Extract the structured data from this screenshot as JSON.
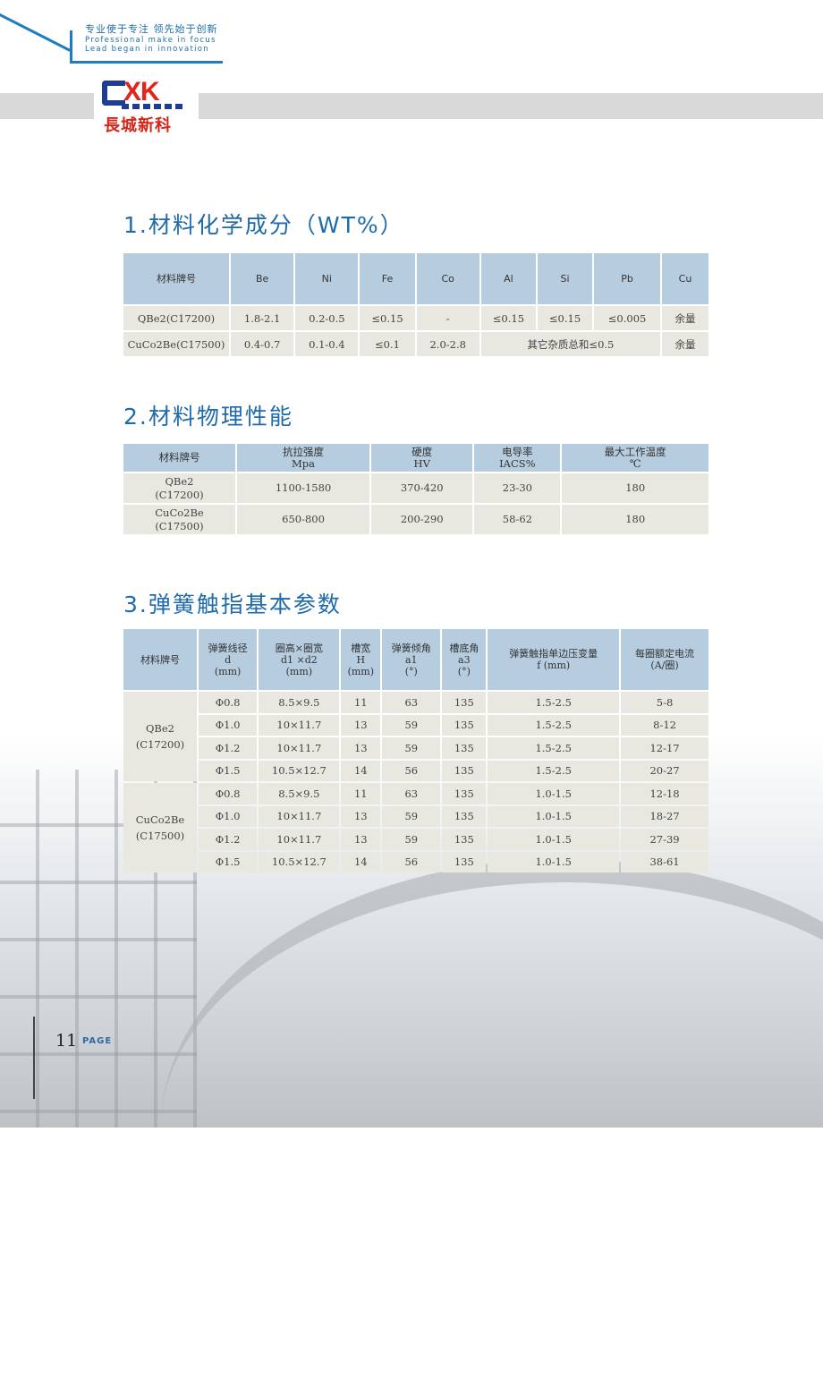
{
  "header": {
    "slogan_cn": "专业使于专注  领先始于创新",
    "slogan_en1": "Professional make in focus",
    "slogan_en2": "Lead began in innovation",
    "logo_text": "CXK",
    "logo_cn": "長城新科",
    "accent": "#1e7cc0"
  },
  "section1": {
    "title": "1.材料化学成分（WT%）",
    "headers": [
      "材料牌号",
      "Be",
      "Ni",
      "Fe",
      "Co",
      "Al",
      "Si",
      "Pb",
      "Cu"
    ],
    "row1": [
      "QBe2(C17200)",
      "1.8-2.1",
      "0.2-0.5",
      "≤0.15",
      "-",
      "≤0.15",
      "≤0.15",
      "≤0.005",
      "余量"
    ],
    "row2": [
      "CuCo2Be(C17500)",
      "0.4-0.7",
      "0.1-0.4",
      "≤0.1",
      "2.0-2.8",
      "其它杂质总和≤0.5",
      "余量"
    ]
  },
  "section2": {
    "title": "2.材料物理性能",
    "headers": [
      [
        "材料牌号",
        ""
      ],
      [
        "抗拉强度",
        "Mpa"
      ],
      [
        "硬度",
        "HV"
      ],
      [
        "电导率",
        "IACS%"
      ],
      [
        "最大工作温度",
        "℃"
      ]
    ],
    "rows": [
      [
        "QBe2",
        "(C17200)",
        "1100-1580",
        "370-420",
        "23-30",
        "180"
      ],
      [
        "CuCo2Be",
        "(C17500)",
        "650-800",
        "200-290",
        "58-62",
        "180"
      ]
    ]
  },
  "section3": {
    "title": "3.弹簧触指基本参数",
    "headers": [
      [
        "材料牌号",
        "",
        ""
      ],
      [
        "弹簧线径",
        "d",
        "(mm)"
      ],
      [
        "圈高×圈宽",
        "d1 ×d2",
        "(mm)"
      ],
      [
        "槽宽",
        "H",
        "(mm)"
      ],
      [
        "弹簧倾角",
        "a1",
        "(°)"
      ],
      [
        "槽底角",
        "a3",
        "(°)"
      ],
      [
        "弹簧触指单边压变量",
        "f (mm)",
        ""
      ],
      [
        "每圈额定电流",
        "(A/圈)",
        ""
      ]
    ],
    "groups": [
      {
        "material": [
          "QBe2",
          "(C17200)"
        ],
        "rows": [
          [
            "Φ0.8",
            "8.5×9.5",
            "11",
            "63",
            "135",
            "1.5-2.5",
            "5-8"
          ],
          [
            "Φ1.0",
            "10×11.7",
            "13",
            "59",
            "135",
            "1.5-2.5",
            "8-12"
          ],
          [
            "Φ1.2",
            "10×11.7",
            "13",
            "59",
            "135",
            "1.5-2.5",
            "12-17"
          ],
          [
            "Φ1.5",
            "10.5×12.7",
            "14",
            "56",
            "135",
            "1.5-2.5",
            "20-27"
          ]
        ]
      },
      {
        "material": [
          "CuCo2Be",
          "(C17500)"
        ],
        "rows": [
          [
            "Φ0.8",
            "8.5×9.5",
            "11",
            "63",
            "135",
            "1.0-1.5",
            "12-18"
          ],
          [
            "Φ1.0",
            "10×11.7",
            "13",
            "59",
            "135",
            "1.0-1.5",
            "18-27"
          ],
          [
            "Φ1.2",
            "10×11.7",
            "13",
            "59",
            "135",
            "1.0-1.5",
            "27-39"
          ],
          [
            "Φ1.5",
            "10.5×12.7",
            "14",
            "56",
            "135",
            "1.0-1.5",
            "38-61"
          ]
        ]
      }
    ]
  },
  "footer": {
    "page_number": "11",
    "page_label": "PAGE"
  }
}
